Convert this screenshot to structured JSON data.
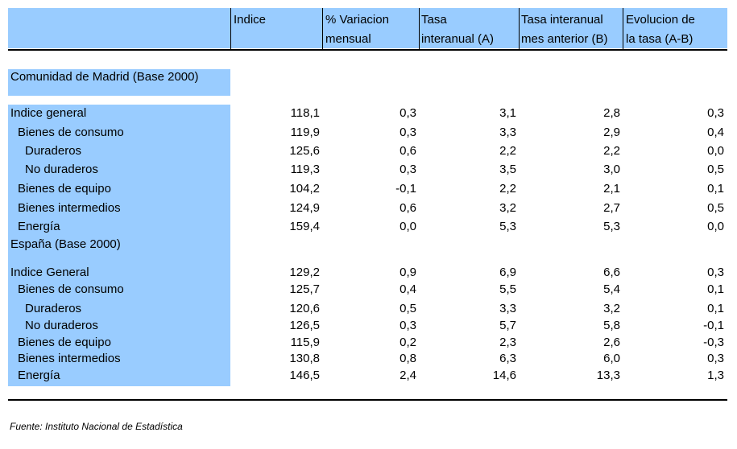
{
  "header": {
    "col1": "",
    "col2": [
      "Indice"
    ],
    "col3": [
      "% Variacion",
      "mensual"
    ],
    "col4": [
      "Tasa",
      "interanual (A)"
    ],
    "col5": [
      "Tasa interanual",
      "mes anterior (B)"
    ],
    "col6": [
      "Evolucion de",
      "la tasa (A-B)"
    ]
  },
  "sections": [
    {
      "title": "Comunidad de Madrid (Base 2000)",
      "rows": [
        {
          "label": "Indice general",
          "indent": 0,
          "values": [
            "118,1",
            "0,3",
            "3,1",
            "2,8",
            "0,3"
          ]
        },
        {
          "label": "Bienes de consumo",
          "indent": 1,
          "values": [
            "119,9",
            "0,3",
            "3,3",
            "2,9",
            "0,4"
          ]
        },
        {
          "label": "Duraderos",
          "indent": 2,
          "values": [
            "125,6",
            "0,6",
            "2,2",
            "2,2",
            "0,0"
          ]
        },
        {
          "label": "No duraderos",
          "indent": 2,
          "values": [
            "119,3",
            "0,3",
            "3,5",
            "3,0",
            "0,5"
          ]
        },
        {
          "label": "Bienes de equipo",
          "indent": 1,
          "values": [
            "104,2",
            "-0,1",
            "2,2",
            "2,1",
            "0,1"
          ]
        },
        {
          "label": "Bienes intermedios",
          "indent": 1,
          "values": [
            "124,9",
            "0,6",
            "3,2",
            "2,7",
            "0,5"
          ]
        },
        {
          "label": "Energía",
          "indent": 1,
          "values": [
            "159,4",
            "0,0",
            "5,3",
            "5,3",
            "0,0"
          ]
        }
      ]
    },
    {
      "title": "España (Base 2000)",
      "rows": [
        {
          "label": "Indice General",
          "indent": 0,
          "values": [
            "129,2",
            "0,9",
            "6,9",
            "6,6",
            "0,3"
          ]
        },
        {
          "label": "Bienes de consumo",
          "indent": 1,
          "values": [
            "125,7",
            "0,4",
            "5,5",
            "5,4",
            "0,1"
          ]
        },
        {
          "label": "Duraderos",
          "indent": 2,
          "values": [
            "120,6",
            "0,5",
            "3,3",
            "3,2",
            "0,1"
          ]
        },
        {
          "label": "No duraderos",
          "indent": 2,
          "values": [
            "126,5",
            "0,3",
            "5,7",
            "5,8",
            "-0,1"
          ]
        },
        {
          "label": "Bienes de equipo",
          "indent": 1,
          "values": [
            "115,9",
            "0,2",
            "2,3",
            "2,6",
            "-0,3"
          ]
        },
        {
          "label": "Bienes intermedios",
          "indent": 1,
          "values": [
            "130,8",
            "0,8",
            "6,3",
            "6,0",
            "0,3"
          ]
        },
        {
          "label": "Energía",
          "indent": 1,
          "values": [
            "146,5",
            "2,4",
            "14,6",
            "13,3",
            "1,3"
          ]
        }
      ]
    }
  ],
  "source": "Fuente: Instituto Nacional de Estadística",
  "colors": {
    "highlight": "#99ccff",
    "text": "#000000"
  }
}
